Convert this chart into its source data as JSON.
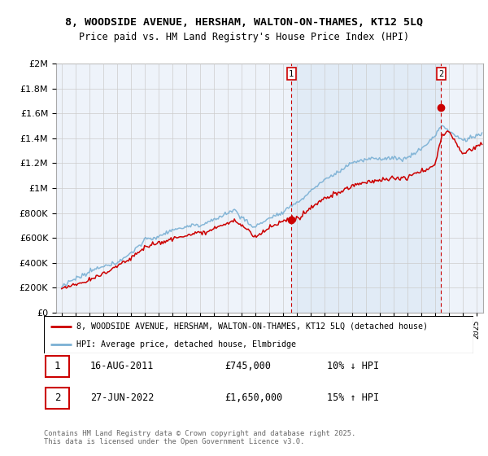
{
  "title1": "8, WOODSIDE AVENUE, HERSHAM, WALTON-ON-THAMES, KT12 5LQ",
  "title2": "Price paid vs. HM Land Registry's House Price Index (HPI)",
  "legend_label_red": "8, WOODSIDE AVENUE, HERSHAM, WALTON-ON-THAMES, KT12 5LQ (detached house)",
  "legend_label_blue": "HPI: Average price, detached house, Elmbridge",
  "sale1_label": "1",
  "sale1_date": "16-AUG-2011",
  "sale1_price": "£745,000",
  "sale1_hpi": "10% ↓ HPI",
  "sale2_label": "2",
  "sale2_date": "27-JUN-2022",
  "sale2_price": "£1,650,000",
  "sale2_hpi": "15% ↑ HPI",
  "footer": "Contains HM Land Registry data © Crown copyright and database right 2025.\nThis data is licensed under the Open Government Licence v3.0.",
  "red_color": "#cc0000",
  "blue_color": "#7ab0d4",
  "vline_color": "#cc0000",
  "grid_color": "#cccccc",
  "background_color": "#ffffff",
  "chart_bg_color": "#f0f4ff",
  "shade_color": "#dde8f5",
  "ylim_min": 0,
  "ylim_max": 2000000,
  "sale1_year": 2011.625,
  "sale2_year": 2022.458,
  "sale1_price_val": 745000,
  "sale2_price_val": 1650000
}
